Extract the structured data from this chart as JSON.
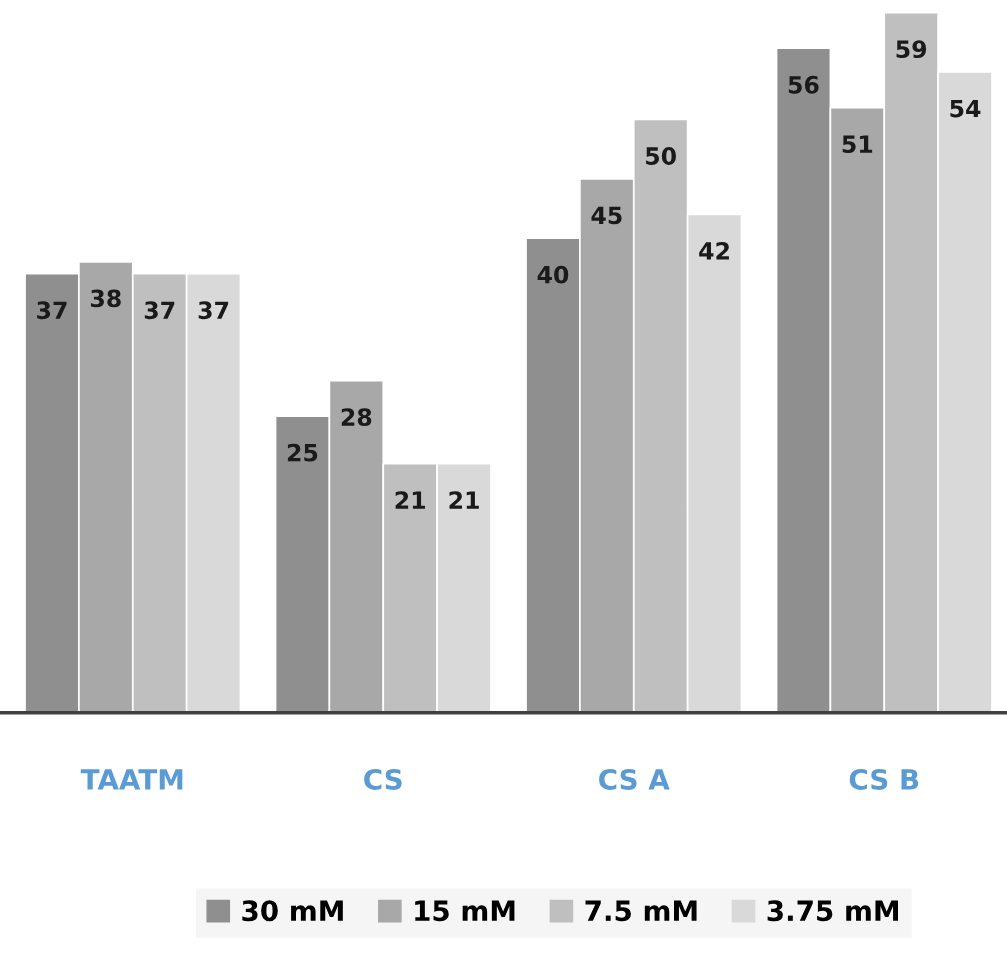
{
  "chart_data": {
    "type": "bar",
    "categories": [
      "TAATM",
      "CS",
      "CS A",
      "CS B"
    ],
    "series": [
      {
        "name": "30 mM",
        "color": "#8f8f8f",
        "values": [
          37,
          25,
          40,
          56
        ]
      },
      {
        "name": "15 mM",
        "color": "#a8a8a8",
        "values": [
          38,
          28,
          45,
          51
        ]
      },
      {
        "name": "7.5 mM",
        "color": "#bfbfbf",
        "values": [
          37,
          21,
          50,
          59
        ]
      },
      {
        "name": "3.75 mM",
        "color": "#d9d9d9",
        "values": [
          37,
          21,
          42,
          54
        ]
      }
    ],
    "data_labels": true,
    "legend": "bottom"
  }
}
